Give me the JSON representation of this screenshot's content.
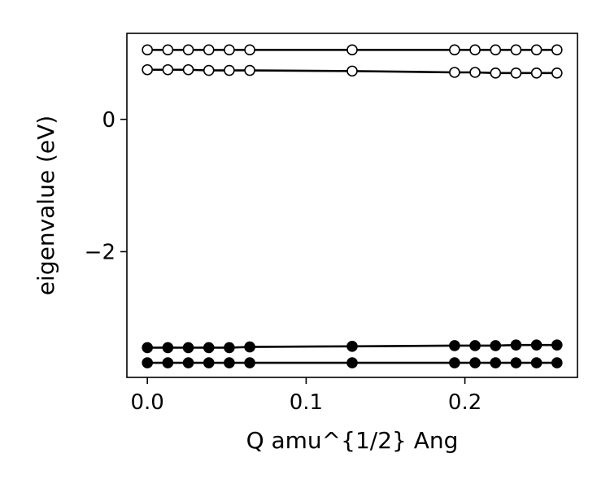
{
  "chart_data": {
    "type": "line",
    "title": "",
    "xlabel": "Q amu^{1/2} Ang",
    "ylabel": "eigenvalue (eV)",
    "xlim": [
      -0.0129,
      0.2709
    ],
    "ylim": [
      -3.9,
      1.3
    ],
    "xticks": [
      {
        "value": 0.0,
        "label": "0.0"
      },
      {
        "value": 0.1,
        "label": "0.1"
      },
      {
        "value": 0.2,
        "label": "0.2"
      }
    ],
    "yticks": [
      {
        "value": 0,
        "label": "0"
      },
      {
        "value": -2,
        "label": "−2"
      }
    ],
    "grid": false,
    "legend": "none",
    "x": [
      0.0,
      0.0129,
      0.0258,
      0.0387,
      0.0516,
      0.0645,
      0.129,
      0.1935,
      0.2064,
      0.2193,
      0.2322,
      0.2451,
      0.258
    ],
    "series": [
      {
        "marker": "open-circle",
        "values": [
          1.05,
          1.05,
          1.05,
          1.05,
          1.05,
          1.05,
          1.05,
          1.05,
          1.05,
          1.05,
          1.05,
          1.05,
          1.05
        ]
      },
      {
        "marker": "open-circle",
        "values": [
          0.75,
          0.75,
          0.75,
          0.74,
          0.74,
          0.74,
          0.73,
          0.71,
          0.71,
          0.7,
          0.7,
          0.7,
          0.7
        ]
      },
      {
        "marker": "filled-circle",
        "values": [
          -3.45,
          -3.45,
          -3.45,
          -3.45,
          -3.45,
          -3.44,
          -3.43,
          -3.42,
          -3.42,
          -3.42,
          -3.41,
          -3.41,
          -3.41
        ]
      },
      {
        "marker": "filled-circle",
        "values": [
          -3.68,
          -3.68,
          -3.68,
          -3.68,
          -3.68,
          -3.68,
          -3.68,
          -3.68,
          -3.68,
          -3.68,
          -3.68,
          -3.68,
          -3.68
        ]
      }
    ]
  }
}
